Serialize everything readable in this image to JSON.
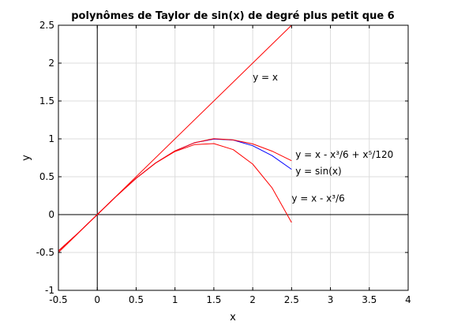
{
  "chart_data": {
    "type": "line",
    "title": "polynômes de Taylor de sin(x) de degré plus petit que 6",
    "xlabel": "x",
    "ylabel": "y",
    "xlim": [
      -0.5,
      4
    ],
    "ylim": [
      -1,
      2.5
    ],
    "grid": true,
    "x_ticks": [
      -0.5,
      0,
      0.5,
      1,
      1.5,
      2,
      2.5,
      3,
      3.5,
      4
    ],
    "x_tick_labels": [
      "-0.5",
      "0",
      "0.5",
      "1",
      "1.5",
      "2",
      "2.5",
      "3",
      "3.5",
      "4"
    ],
    "y_ticks": [
      -1,
      -0.5,
      0,
      0.5,
      1,
      1.5,
      2,
      2.5
    ],
    "y_tick_labels": [
      "-1",
      "-0.5",
      "0",
      "0.5",
      "1",
      "1.5",
      "2",
      "2.5"
    ],
    "axes_lines": [
      "x = 0",
      "y = 0"
    ],
    "series": [
      {
        "function": "sin",
        "color": "#0000ff",
        "x": [
          -0.5,
          -0.25,
          0,
          0.25,
          0.5,
          0.75,
          1,
          1.25,
          1.5,
          1.75,
          2,
          2.25,
          2.5
        ],
        "values": [
          -0.479,
          -0.247,
          0,
          0.247,
          0.479,
          0.682,
          0.841,
          0.949,
          0.997,
          0.984,
          0.909,
          0.778,
          0.598
        ]
      },
      {
        "function": "degree-1",
        "color": "#ff0000",
        "x": [
          -0.5,
          2.5
        ],
        "values": [
          -0.5,
          2.5
        ]
      },
      {
        "function": "degree-3",
        "color": "#ff0000",
        "x": [
          -0.5,
          -0.25,
          0,
          0.25,
          0.5,
          0.75,
          1,
          1.25,
          1.5,
          1.75,
          2,
          2.25,
          2.5
        ],
        "values": [
          -0.479,
          -0.247,
          0,
          0.247,
          0.479,
          0.68,
          0.833,
          0.924,
          0.938,
          0.857,
          0.667,
          0.352,
          -0.104
        ]
      },
      {
        "function": "degree-5",
        "color": "#ff0000",
        "x": [
          -0.5,
          -0.25,
          0,
          0.25,
          0.5,
          0.75,
          1,
          1.25,
          1.5,
          1.75,
          2,
          2.25,
          2.5
        ],
        "values": [
          -0.479,
          -0.247,
          0,
          0.247,
          0.479,
          0.682,
          0.842,
          0.949,
          1.002,
          0.985,
          0.933,
          0.837,
          0.711
        ]
      }
    ],
    "annotations": [
      {
        "text": "y = x",
        "x": 2.0,
        "y": 1.77
      },
      {
        "text": "y = x - x³/6 + x⁵/120",
        "x": 2.55,
        "y": 0.75
      },
      {
        "text": "y = sin(x)",
        "x": 2.55,
        "y": 0.53
      },
      {
        "text": "y = x - x³/6",
        "x": 2.5,
        "y": 0.17
      }
    ]
  }
}
